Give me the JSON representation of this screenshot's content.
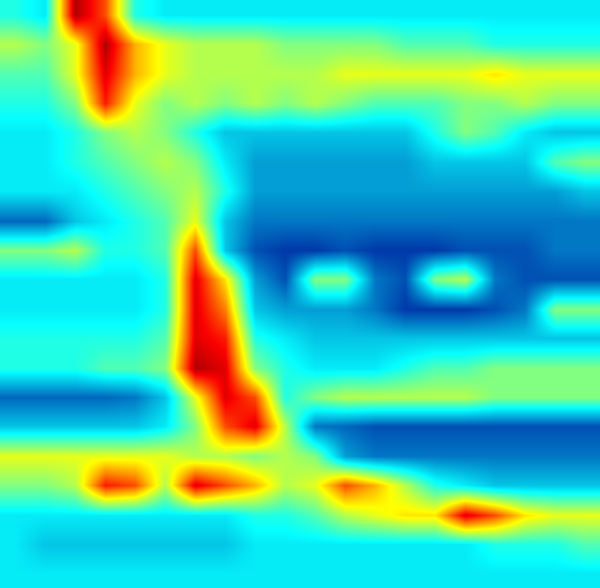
{
  "chart_data": {
    "type": "heatmap",
    "tick_labels": false,
    "grid": false,
    "zlim": [
      0,
      10
    ],
    "cells": [
      [
        4,
        3.5,
        9.5,
        8,
        4,
        3.5,
        3.5,
        3.5,
        3.5,
        3.5,
        3.5,
        3.5,
        3.5,
        3.5,
        3.5,
        3.5,
        3.5,
        3.5,
        3.5,
        3.5
      ],
      [
        5.5,
        5,
        6,
        9.5,
        7,
        6,
        5.5,
        5.5,
        5.5,
        5,
        5,
        5,
        5,
        4.5,
        4.5,
        4.5,
        4,
        4,
        4,
        4
      ],
      [
        4.5,
        4.5,
        6,
        9,
        7,
        6,
        5.5,
        5.5,
        5.5,
        5.5,
        5.5,
        6,
        6,
        6,
        6,
        6,
        6.5,
        6,
        6,
        6
      ],
      [
        4,
        4,
        5,
        8.5,
        6,
        5,
        5.5,
        5,
        5.5,
        5,
        5.5,
        5,
        4.5,
        4.5,
        4.5,
        5,
        5,
        5.5,
        5,
        5
      ],
      [
        3.5,
        3.5,
        4,
        5,
        5.5,
        5,
        4,
        3,
        3,
        3,
        3,
        3,
        3,
        3,
        4,
        5,
        4.5,
        3.5,
        3,
        3
      ],
      [
        3.5,
        3.5,
        4,
        4.5,
        5,
        5.5,
        5,
        3.5,
        2.5,
        2.5,
        2.5,
        2.5,
        2.5,
        2.5,
        3,
        3,
        3,
        3,
        4.5,
        5
      ],
      [
        3.5,
        3.5,
        3.5,
        4,
        4.5,
        5,
        5.5,
        4,
        2.5,
        2.5,
        2.5,
        2.5,
        2.5,
        2.5,
        2.5,
        2.5,
        2.5,
        2.5,
        2.5,
        3
      ],
      [
        1.8,
        1.8,
        3,
        3.5,
        4,
        4.5,
        6,
        3,
        2,
        2,
        2,
        2,
        2,
        2,
        2,
        2,
        2,
        2,
        2,
        2
      ],
      [
        5,
        5,
        5.5,
        4,
        4,
        4.5,
        8,
        3,
        1.5,
        1.2,
        1.2,
        1.5,
        1.2,
        1.2,
        1.2,
        1.5,
        1.5,
        1.5,
        2,
        2
      ],
      [
        3.5,
        3.5,
        3.5,
        3.5,
        3.5,
        4,
        9,
        6.5,
        2.5,
        1.5,
        5,
        5,
        2,
        1.5,
        5,
        5.5,
        2,
        1.5,
        1.5,
        1.5
      ],
      [
        3.5,
        3.5,
        3.5,
        3.5,
        3.5,
        4,
        9,
        7.5,
        3,
        2.5,
        2.5,
        2.5,
        2,
        1.2,
        1.2,
        1.2,
        1.5,
        2,
        5,
        5
      ],
      [
        4,
        4,
        4,
        4,
        4,
        4.5,
        9,
        8.5,
        4,
        3.5,
        3,
        3,
        3,
        3,
        3,
        3,
        3,
        3,
        3,
        3
      ],
      [
        4,
        4,
        4,
        4.5,
        4.5,
        5,
        9.5,
        9,
        5,
        4,
        3.5,
        3.5,
        3.5,
        4,
        4.5,
        4.5,
        5,
        5,
        5,
        5
      ],
      [
        1.8,
        1.8,
        1.8,
        1.8,
        2,
        3,
        6,
        9,
        8,
        4,
        5,
        5.5,
        5.5,
        5.5,
        5.5,
        5.5,
        5,
        5,
        5,
        5
      ],
      [
        3,
        3,
        3,
        3,
        3,
        3.5,
        5,
        8,
        9,
        5.5,
        2,
        1.8,
        1.5,
        1.5,
        1.5,
        1.5,
        1.5,
        1.5,
        1.5,
        1.5
      ],
      [
        6,
        6,
        6,
        6,
        6,
        6,
        5.5,
        5.5,
        5,
        5.5,
        5,
        2.5,
        2,
        2,
        2,
        2,
        2,
        2,
        2,
        2
      ],
      [
        5,
        5,
        5.5,
        8.5,
        8,
        5.5,
        9,
        8,
        7,
        5.5,
        6,
        8,
        7,
        5.5,
        4,
        3.5,
        3,
        3,
        3,
        3
      ],
      [
        3.5,
        3.5,
        3.5,
        3.5,
        3.5,
        3.5,
        3.5,
        3.5,
        4,
        4,
        4.5,
        5.5,
        6,
        6.5,
        6.5,
        9,
        8,
        6.5,
        6,
        6
      ],
      [
        3.5,
        3,
        3,
        3,
        3,
        3,
        3,
        3,
        3.5,
        3.5,
        3.5,
        3.5,
        3.5,
        3.5,
        3.5,
        3.5,
        4,
        4,
        4,
        4.5
      ],
      [
        3.5,
        3.5,
        3.5,
        3.5,
        3.5,
        3.5,
        3.5,
        3.5,
        3.5,
        3.5,
        3.5,
        3.5,
        3.5,
        3.5,
        3.5,
        3.5,
        3.5,
        3.5,
        3.5,
        3.5
      ]
    ]
  }
}
